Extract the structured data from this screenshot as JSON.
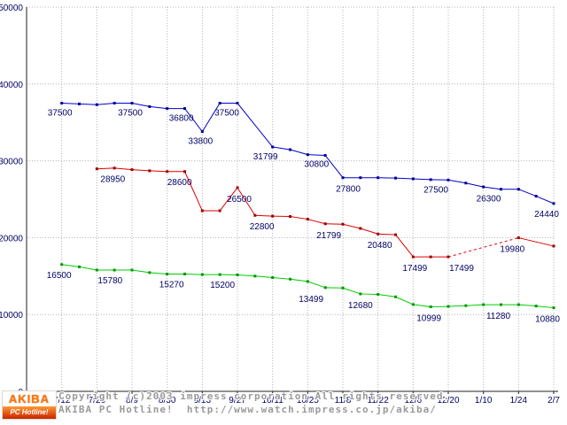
{
  "chart_data": {
    "type": "line",
    "title": "",
    "x_tick_labels": [
      "6/28",
      "7/12",
      "7/26",
      "8/9",
      "8/30",
      "9/13",
      "9/27",
      "10/11",
      "10/25",
      "11/8",
      "11/22",
      "12/6",
      "12/20",
      "1/10",
      "1/24",
      "2/7"
    ],
    "y_ticks": [
      0,
      10000,
      20000,
      30000,
      40000,
      50000
    ],
    "ylim": [
      0,
      50000
    ],
    "grid": "dotted",
    "legend": "none",
    "axis_color": "#222222",
    "grid_color": "#b4b4b4",
    "label_color": "#000066",
    "point_format": [
      "x_tick_position",
      "price_yen",
      "point_label",
      "label_dx_px",
      "label_dy_px",
      "dashed_from_prev"
    ],
    "series": [
      {
        "name": "blue",
        "color": "#0000cc",
        "marker_color": "#000099",
        "points": [
          [
            1,
            37500,
            "37500",
            -2,
            14
          ],
          [
            1.5,
            37400
          ],
          [
            2,
            37300
          ],
          [
            2.5,
            37500
          ],
          [
            3,
            37500,
            "37500",
            -2,
            14
          ],
          [
            3.5,
            37050
          ],
          [
            4,
            36800,
            "36800",
            16,
            14
          ],
          [
            4.5,
            36800
          ],
          [
            5,
            33800,
            "33800",
            -2,
            14
          ],
          [
            5.5,
            37500
          ],
          [
            6,
            37500,
            "37500",
            -12,
            14
          ],
          [
            7,
            31799,
            "31799",
            -8,
            14
          ],
          [
            7.5,
            31450
          ],
          [
            8,
            30800,
            "30800",
            10,
            14
          ],
          [
            8.5,
            30700
          ],
          [
            9,
            27800,
            "27800",
            6,
            16
          ],
          [
            9.5,
            27800
          ],
          [
            10,
            27800
          ],
          [
            10.5,
            27750
          ],
          [
            11,
            27650
          ],
          [
            11.5,
            27550
          ],
          [
            12,
            27500,
            "27500",
            -14,
            14
          ],
          [
            12.5,
            27100
          ],
          [
            13,
            26600
          ],
          [
            13.5,
            26300,
            "26300",
            -14,
            14
          ],
          [
            14,
            26300
          ],
          [
            14.5,
            25400
          ],
          [
            15,
            24440,
            "24440",
            -8,
            15
          ]
        ]
      },
      {
        "name": "red",
        "color": "#dd0000",
        "marker_color": "#990000",
        "points": [
          [
            2,
            28950,
            "28950",
            18,
            15
          ],
          [
            2.5,
            29050
          ],
          [
            3,
            28850
          ],
          [
            3.5,
            28700
          ],
          [
            4,
            28600,
            "28600",
            14,
            15
          ],
          [
            4.5,
            28600
          ],
          [
            5,
            23500
          ],
          [
            5.5,
            23500
          ],
          [
            6,
            26500,
            "26500",
            2,
            16
          ],
          [
            6.5,
            22900
          ],
          [
            7,
            22800,
            "22800",
            -12,
            15
          ],
          [
            7.5,
            22750
          ],
          [
            8,
            22400
          ],
          [
            8.5,
            21799,
            "21799",
            4,
            16
          ],
          [
            9,
            21750
          ],
          [
            9.5,
            21200
          ],
          [
            10,
            20480,
            "20480",
            2,
            16
          ],
          [
            10.5,
            20380
          ],
          [
            11,
            17499,
            "17499",
            2,
            16
          ],
          [
            11.5,
            17499
          ],
          [
            12,
            17499,
            "17499",
            15,
            16
          ],
          [
            14,
            19980,
            "19980",
            -7,
            16,
            1
          ],
          [
            15,
            18900
          ]
        ]
      },
      {
        "name": "green",
        "color": "#00cc00",
        "marker_color": "#009900",
        "points": [
          [
            1,
            16500,
            "16500",
            -3,
            15
          ],
          [
            1.5,
            16200
          ],
          [
            2,
            15780,
            "15780",
            15,
            15
          ],
          [
            2.5,
            15780
          ],
          [
            3,
            15780
          ],
          [
            3.5,
            15450
          ],
          [
            4,
            15270,
            "15270",
            5,
            15
          ],
          [
            4.5,
            15270
          ],
          [
            5,
            15200
          ],
          [
            5.5,
            15200,
            "15200",
            3,
            15
          ],
          [
            6,
            15150
          ],
          [
            6.5,
            15000
          ],
          [
            7,
            14800
          ],
          [
            7.5,
            14600
          ],
          [
            8,
            14300
          ],
          [
            8.5,
            13499,
            "13499",
            -16,
            16
          ],
          [
            9,
            13450
          ],
          [
            9.5,
            12680,
            "12680",
            0,
            16
          ],
          [
            10,
            12620
          ],
          [
            10.5,
            12300
          ],
          [
            11,
            11300
          ],
          [
            11.5,
            10999,
            "10999",
            -2,
            16
          ],
          [
            12,
            11050
          ],
          [
            12.5,
            11150
          ],
          [
            13,
            11280
          ],
          [
            13.5,
            11280,
            "11280",
            -3,
            16
          ],
          [
            14,
            11280
          ],
          [
            14.5,
            11100
          ],
          [
            15,
            10880,
            "10880",
            -7,
            16
          ]
        ]
      }
    ]
  },
  "footer": {
    "copyright": "Copyright (c)2003 impress corporation All rights reserved.",
    "site": "AKIBA PC Hotline!  http://www.watch.impress.co.jp/akiba/"
  },
  "logo": {
    "top": "AKIBA",
    "bottom": "PC Hotline!"
  }
}
